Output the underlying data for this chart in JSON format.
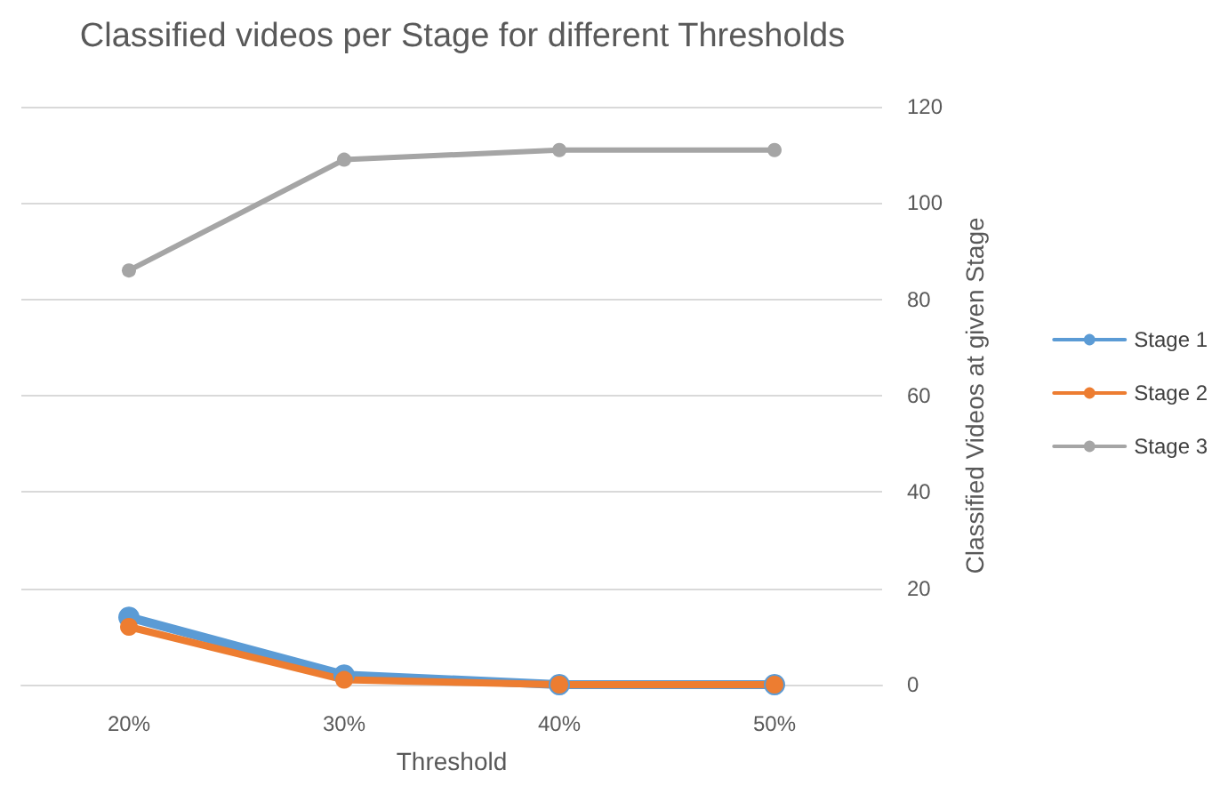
{
  "chart_data": {
    "type": "line",
    "title": "Classified videos per Stage for different Thresholds",
    "xlabel": "Threshold",
    "ylabel": "Classified Videos at given Stage",
    "categories": [
      "20%",
      "30%",
      "40%",
      "50%"
    ],
    "series": [
      {
        "name": "Stage 1",
        "color": "#5b9bd5",
        "values": [
          14,
          2,
          0,
          0
        ]
      },
      {
        "name": "Stage 2",
        "color": "#ed7d31",
        "values": [
          12,
          1,
          0,
          0
        ]
      },
      {
        "name": "Stage 3",
        "color": "#a5a5a5",
        "values": [
          86,
          109,
          111,
          111
        ]
      }
    ],
    "ylim": [
      0,
      120
    ],
    "yticks": [
      0,
      20,
      40,
      60,
      80,
      100,
      120
    ],
    "grid": "y",
    "legend": "right",
    "marker": "circle",
    "line_style": "solid"
  }
}
